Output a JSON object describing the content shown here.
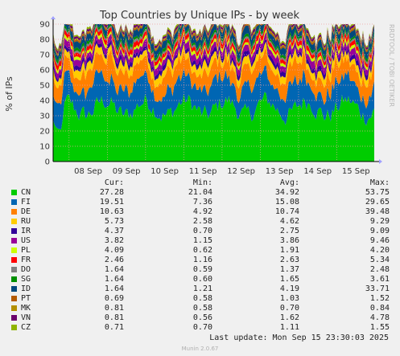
{
  "chart_data": {
    "type": "area",
    "title": "Top Countries by Unique IPs - by week",
    "ylabel": "% of IPs",
    "ylim": [
      0,
      90
    ],
    "yticks": [
      0,
      10,
      20,
      30,
      40,
      50,
      60,
      70,
      80,
      90
    ],
    "x_ticks": [
      "08 Sep",
      "09 Sep",
      "10 Sep",
      "11 Sep",
      "12 Sep",
      "13 Sep",
      "14 Sep",
      "15 Sep"
    ],
    "x_range": [
      "2025-09-07 14:00",
      "2025-09-15 23:30"
    ],
    "stacked": true,
    "grid": true,
    "side_label": "RRDTOOL / TOBI OETIKER",
    "columns": [
      "Cur:",
      "Min:",
      "Avg:",
      "Max:"
    ],
    "series": [
      {
        "name": "CN",
        "color": "#00cc00",
        "cur": "27.28",
        "min": "21.04",
        "avg": "34.92",
        "max": "53.75"
      },
      {
        "name": "FI",
        "color": "#0066b3",
        "cur": "19.51",
        "min": "7.36",
        "avg": "15.08",
        "max": "29.65"
      },
      {
        "name": "DE",
        "color": "#ff8000",
        "cur": "10.63",
        "min": "4.92",
        "avg": "10.74",
        "max": "39.48"
      },
      {
        "name": "RU",
        "color": "#ffcc00",
        "cur": "5.73",
        "min": "2.58",
        "avg": "4.62",
        "max": "9.29"
      },
      {
        "name": "IR",
        "color": "#330099",
        "cur": "4.37",
        "min": "0.70",
        "avg": "2.75",
        "max": "9.09"
      },
      {
        "name": "US",
        "color": "#990099",
        "cur": "3.82",
        "min": "1.15",
        "avg": "3.86",
        "max": "9.46"
      },
      {
        "name": "PL",
        "color": "#ccff00",
        "cur": "4.09",
        "min": "0.62",
        "avg": "1.91",
        "max": "4.20"
      },
      {
        "name": "FR",
        "color": "#ff0000",
        "cur": "2.46",
        "min": "1.16",
        "avg": "2.63",
        "max": "5.34"
      },
      {
        "name": "DO",
        "color": "#808080",
        "cur": "1.64",
        "min": "0.59",
        "avg": "1.37",
        "max": "2.48"
      },
      {
        "name": "SG",
        "color": "#008f00",
        "cur": "1.64",
        "min": "0.60",
        "avg": "1.65",
        "max": "3.61"
      },
      {
        "name": "ID",
        "color": "#00487d",
        "cur": "1.64",
        "min": "1.21",
        "avg": "4.19",
        "max": "33.71"
      },
      {
        "name": "PT",
        "color": "#b35a00",
        "cur": "0.69",
        "min": "0.58",
        "avg": "1.03",
        "max": "1.52"
      },
      {
        "name": "MK",
        "color": "#b38f00",
        "cur": "0.81",
        "min": "0.58",
        "avg": "0.70",
        "max": "0.84"
      },
      {
        "name": "VN",
        "color": "#6b006b",
        "cur": "0.81",
        "min": "0.56",
        "avg": "1.62",
        "max": "4.78"
      },
      {
        "name": "CZ",
        "color": "#8fb300",
        "cur": "0.71",
        "min": "0.70",
        "avg": "1.11",
        "max": "1.55"
      }
    ]
  },
  "footer": {
    "last_update": "Last update: Mon Sep 15 23:30:03 2025",
    "munin_version": "Munin 2.0.67"
  }
}
